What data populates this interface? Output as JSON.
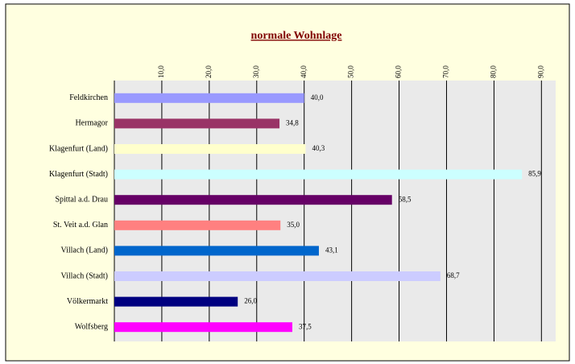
{
  "chart_data": {
    "type": "barh",
    "title": "normale Wohnlage",
    "categories": [
      "Feldkirchen",
      "Hermagor",
      "Klagenfurt (Land)",
      "Klagenfurt (Stadt)",
      "Spittal a.d. Drau",
      "St. Veit a.d. Glan",
      "Villach (Land)",
      "Villach (Stadt)",
      "Völkermarkt",
      "Wolfsberg"
    ],
    "values": [
      40.0,
      34.8,
      40.3,
      85.9,
      58.5,
      35.0,
      43.1,
      68.7,
      26.0,
      37.5
    ],
    "value_labels": [
      "40,0",
      "34,8",
      "40,3",
      "85,9",
      "58,5",
      "35,0",
      "43,1",
      "68,7",
      "26,0",
      "37,5"
    ],
    "colors": [
      "#9999ff",
      "#993366",
      "#ffffcc",
      "#ccffff",
      "#660066",
      "#ff8080",
      "#0066cc",
      "#ccccff",
      "#000080",
      "#ff00ff"
    ],
    "xlim": [
      0,
      93
    ],
    "xticks": [
      {
        "value": 10,
        "label": "10,0"
      },
      {
        "value": 20,
        "label": "20,0"
      },
      {
        "value": 30,
        "label": "30,0"
      },
      {
        "value": 40,
        "label": "40,0"
      },
      {
        "value": 50,
        "label": "50,0"
      },
      {
        "value": 60,
        "label": "60,0"
      },
      {
        "value": 70,
        "label": "70,0"
      },
      {
        "value": 80,
        "label": "80,0"
      },
      {
        "value": 90,
        "label": "90,0"
      }
    ],
    "grid": true
  }
}
